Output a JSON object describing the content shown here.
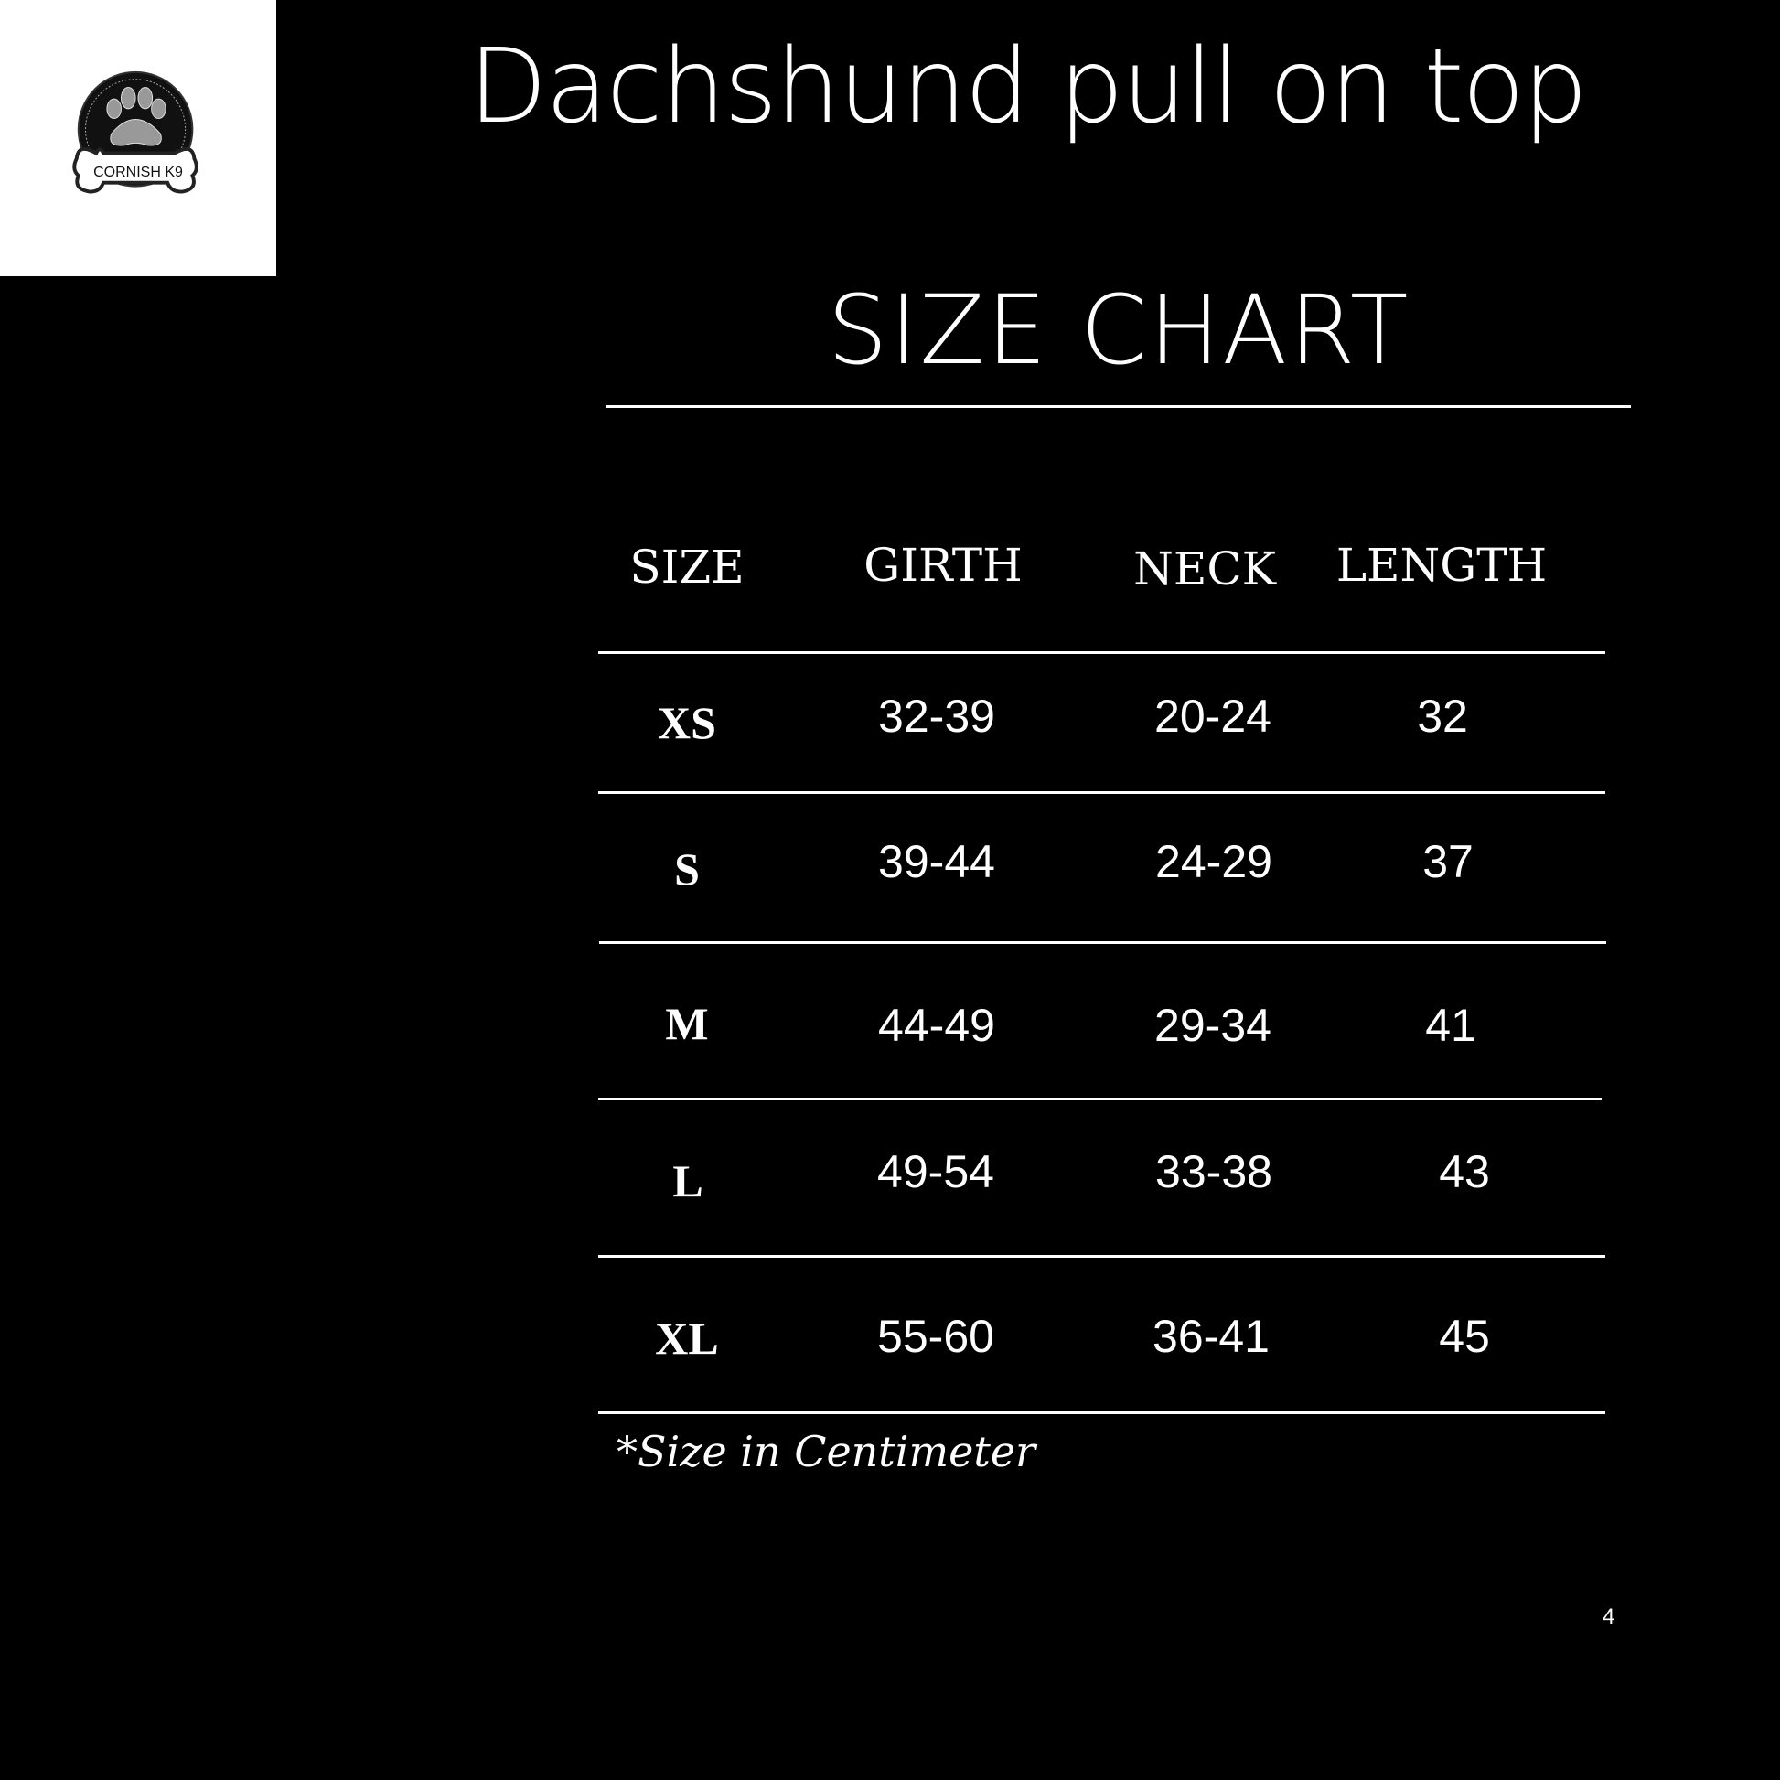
{
  "logo": {
    "text": "CORNISH K9",
    "icon": "paw-bone-logo"
  },
  "title": "Dachshund pull on top",
  "subtitle": "SIZE CHART",
  "table": {
    "headers": [
      "SIZE",
      "GIRTH",
      "NECK",
      "LENGTH"
    ],
    "rows": [
      [
        "XS",
        "32-39",
        "20-24",
        "32"
      ],
      [
        "S",
        "39-44",
        "24-29",
        "37"
      ],
      [
        "M",
        "44-49",
        "29-34",
        "41"
      ],
      [
        "L",
        "49-54",
        "33-38",
        "43"
      ],
      [
        "XL",
        "55-60",
        "36-41",
        "45"
      ]
    ]
  },
  "footnote": "*Size in Centimeter",
  "page_number": "4"
}
